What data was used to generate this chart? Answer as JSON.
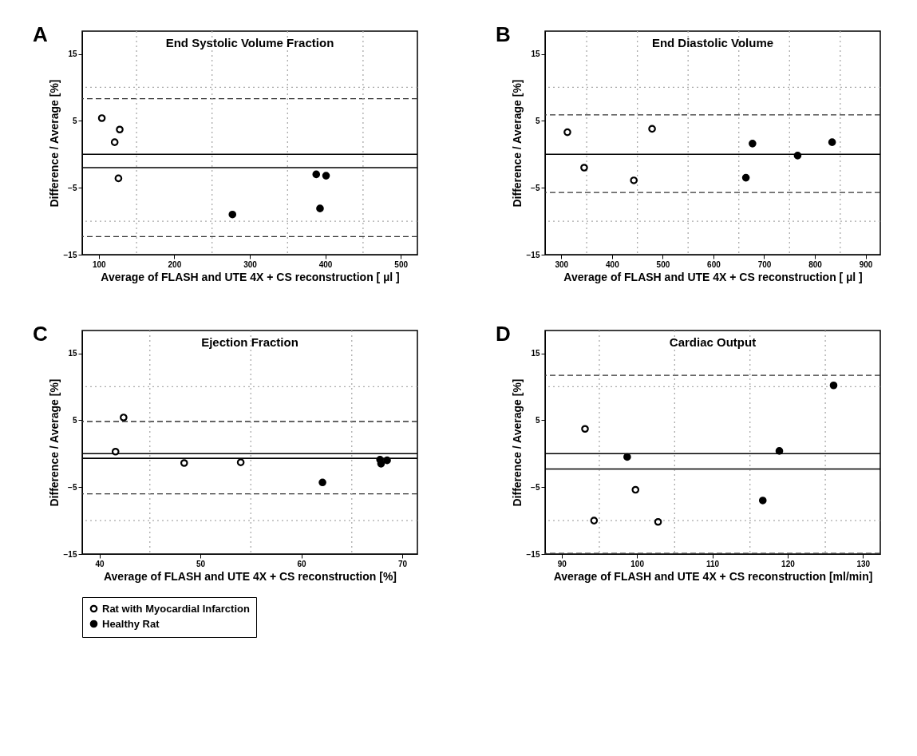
{
  "chart_data": [
    {
      "type": "scatter",
      "title": "End Systolic Volume Fraction",
      "annotations": [
        "A"
      ],
      "xlabel": "Average of FLASH and UTE 4X + CS reconstruction [ µl ]",
      "ylabel": "Difference / Average [%]",
      "xlim": [
        78,
        522
      ],
      "xticks": [
        100,
        200,
        300,
        400,
        500
      ],
      "ylim": [
        -15,
        18.4
      ],
      "yticks": [
        -15,
        -5,
        5,
        15
      ],
      "legend": "bottom",
      "series": [
        {
          "name": "Rat with Myocardial Infarction",
          "color": "#000000",
          "marker": "circle-open",
          "x": [
            104,
            127.7,
            121,
            126
          ],
          "values": [
            5.4,
            3.7,
            1.8,
            -3.6
          ]
        },
        {
          "name": "Healthy Rat",
          "color": "#000000",
          "marker": "circle",
          "x": [
            388,
            401,
            393,
            277
          ],
          "values": [
            -3.0,
            -3.2,
            -8.1,
            -9.0
          ]
        }
      ],
      "ref_lines": [
        {
          "axis": "y",
          "value": 0,
          "color": "#000000",
          "line_style": "solid"
        },
        {
          "axis": "y",
          "value": -2.0,
          "color": "#000000",
          "line_style": "solid"
        },
        {
          "axis": "y",
          "value": 8.3,
          "color": "#333333",
          "line_style": "dashed"
        },
        {
          "axis": "y",
          "value": -12.3,
          "color": "#333333",
          "line_style": "dashed"
        },
        {
          "axis": "y",
          "value": 10,
          "color": "#aaaaaa",
          "line_style": "dotted"
        },
        {
          "axis": "y",
          "value": -10,
          "color": "#aaaaaa",
          "line_style": "dotted"
        },
        {
          "axis": "x",
          "value": 150,
          "color": "#aaaaaa",
          "line_style": "dotted"
        },
        {
          "axis": "x",
          "value": 250,
          "color": "#aaaaaa",
          "line_style": "dotted"
        },
        {
          "axis": "x",
          "value": 350,
          "color": "#aaaaaa",
          "line_style": "dotted"
        },
        {
          "axis": "x",
          "value": 450,
          "color": "#aaaaaa",
          "line_style": "dotted"
        }
      ]
    },
    {
      "type": "scatter",
      "title": "End Diastolic Volume",
      "annotations": [
        "B"
      ],
      "xlabel": "Average of FLASH and UTE 4X + CS reconstruction [ µl ]",
      "ylabel": "Difference / Average [%]",
      "xlim": [
        268,
        929
      ],
      "xticks": [
        300,
        400,
        500,
        600,
        700,
        800,
        900
      ],
      "ylim": [
        -15,
        18.4
      ],
      "yticks": [
        -15,
        -5,
        5,
        15
      ],
      "legend": "bottom",
      "series": [
        {
          "name": "Rat with Myocardial Infarction",
          "color": "#000000",
          "marker": "circle-open",
          "x": [
            312,
            345,
            443,
            479
          ],
          "values": [
            3.3,
            -2.0,
            -3.9,
            3.8
          ]
        },
        {
          "name": "Healthy Rat",
          "color": "#000000",
          "marker": "circle",
          "x": [
            677,
            664,
            766,
            834
          ],
          "values": [
            1.6,
            -3.5,
            -0.2,
            1.8
          ]
        }
      ],
      "ref_lines": [
        {
          "axis": "y",
          "value": 0,
          "color": "#000000",
          "line_style": "solid"
        },
        {
          "axis": "y",
          "value": 5.9,
          "color": "#333333",
          "line_style": "dashed"
        },
        {
          "axis": "y",
          "value": -5.7,
          "color": "#333333",
          "line_style": "dashed"
        },
        {
          "axis": "y",
          "value": 10,
          "color": "#aaaaaa",
          "line_style": "dotted"
        },
        {
          "axis": "y",
          "value": -10,
          "color": "#aaaaaa",
          "line_style": "dotted"
        },
        {
          "axis": "x",
          "value": 350,
          "color": "#aaaaaa",
          "line_style": "dotted"
        },
        {
          "axis": "x",
          "value": 450,
          "color": "#aaaaaa",
          "line_style": "dotted"
        },
        {
          "axis": "x",
          "value": 550,
          "color": "#aaaaaa",
          "line_style": "dotted"
        },
        {
          "axis": "x",
          "value": 650,
          "color": "#aaaaaa",
          "line_style": "dotted"
        },
        {
          "axis": "x",
          "value": 750,
          "color": "#aaaaaa",
          "line_style": "dotted"
        },
        {
          "axis": "x",
          "value": 850,
          "color": "#aaaaaa",
          "line_style": "dotted"
        }
      ]
    },
    {
      "type": "scatter",
      "title": "Ejection Fraction",
      "annotations": [
        "C"
      ],
      "xlabel": "Average of FLASH and UTE 4X + CS reconstruction [%]",
      "ylabel": "Difference / Average [%]",
      "xlim": [
        38.3,
        71.5
      ],
      "xticks": [
        40,
        50,
        60,
        70
      ],
      "ylim": [
        -15,
        18.4
      ],
      "yticks": [
        -15,
        -5,
        5,
        15
      ],
      "legend": "bottom",
      "series": [
        {
          "name": "Rat with Myocardial Infarction",
          "color": "#000000",
          "marker": "circle-open",
          "x": [
            41.6,
            42.4,
            48.4,
            54.0
          ],
          "values": [
            0.3,
            5.4,
            -1.4,
            -1.3
          ]
        },
        {
          "name": "Healthy Rat",
          "color": "#000000",
          "marker": "circle",
          "x": [
            62.1,
            67.8,
            67.9,
            68.5
          ],
          "values": [
            -4.3,
            -0.9,
            -1.5,
            -1.0
          ]
        }
      ],
      "ref_lines": [
        {
          "axis": "y",
          "value": 0,
          "color": "#000000",
          "line_style": "solid"
        },
        {
          "axis": "y",
          "value": -0.7,
          "color": "#000000",
          "line_style": "solid"
        },
        {
          "axis": "y",
          "value": 4.8,
          "color": "#333333",
          "line_style": "dashed"
        },
        {
          "axis": "y",
          "value": -6.0,
          "color": "#333333",
          "line_style": "dashed"
        },
        {
          "axis": "y",
          "value": 10,
          "color": "#aaaaaa",
          "line_style": "dotted"
        },
        {
          "axis": "y",
          "value": -10,
          "color": "#aaaaaa",
          "line_style": "dotted"
        },
        {
          "axis": "x",
          "value": 45,
          "color": "#aaaaaa",
          "line_style": "dotted"
        },
        {
          "axis": "x",
          "value": 55,
          "color": "#aaaaaa",
          "line_style": "dotted"
        },
        {
          "axis": "x",
          "value": 65,
          "color": "#aaaaaa",
          "line_style": "dotted"
        }
      ]
    },
    {
      "type": "scatter",
      "title": "Cardiac Output",
      "annotations": [
        "D"
      ],
      "xlabel": "Average of FLASH and UTE 4X + CS reconstruction [ml/min]",
      "ylabel": "Difference / Average [%]",
      "xlim": [
        87.8,
        132.3
      ],
      "xticks": [
        90,
        100,
        110,
        120,
        130
      ],
      "ylim": [
        -15,
        18.4
      ],
      "yticks": [
        -15,
        -5,
        5,
        15
      ],
      "legend": "bottom",
      "series": [
        {
          "name": "Rat with Myocardial Infarction",
          "color": "#000000",
          "marker": "circle-open",
          "x": [
            93.1,
            94.3,
            99.8,
            102.8
          ],
          "values": [
            3.7,
            -10.0,
            -5.4,
            -10.2
          ]
        },
        {
          "name": "Healthy Rat",
          "color": "#000000",
          "marker": "circle",
          "x": [
            98.7,
            118.9,
            116.7,
            126.1
          ],
          "values": [
            -0.5,
            0.4,
            -7.0,
            10.2
          ]
        }
      ],
      "ref_lines": [
        {
          "axis": "y",
          "value": 0,
          "color": "#000000",
          "line_style": "solid"
        },
        {
          "axis": "y",
          "value": -2.3,
          "color": "#000000",
          "line_style": "solid"
        },
        {
          "axis": "y",
          "value": 11.7,
          "color": "#333333",
          "line_style": "dashed"
        },
        {
          "axis": "y",
          "value": -14.9,
          "color": "#333333",
          "line_style": "dashed"
        },
        {
          "axis": "y",
          "value": 10,
          "color": "#aaaaaa",
          "line_style": "dotted"
        },
        {
          "axis": "y",
          "value": -10,
          "color": "#aaaaaa",
          "line_style": "dotted"
        },
        {
          "axis": "x",
          "value": 95,
          "color": "#aaaaaa",
          "line_style": "dotted"
        },
        {
          "axis": "x",
          "value": 105,
          "color": "#aaaaaa",
          "line_style": "dotted"
        },
        {
          "axis": "x",
          "value": 115,
          "color": "#aaaaaa",
          "line_style": "dotted"
        },
        {
          "axis": "x",
          "value": 125,
          "color": "#aaaaaa",
          "line_style": "dotted"
        }
      ]
    }
  ]
}
